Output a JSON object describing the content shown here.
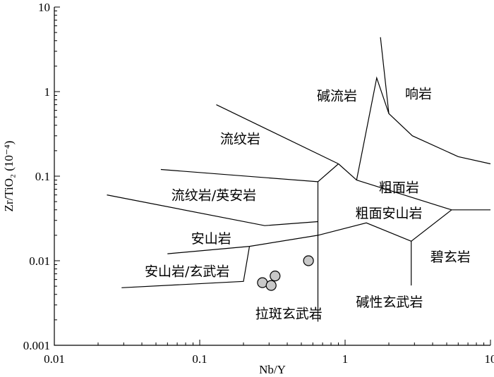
{
  "chart_data": {
    "type": "scatter",
    "x_scale": "log",
    "y_scale": "log",
    "xlim": [
      0.01,
      10
    ],
    "ylim": [
      0.001,
      10
    ],
    "xlabel": "Nb/Y",
    "ylabel": "Zr/TiO₂ (10⁻⁴)",
    "x_ticks": [
      {
        "value": 0.01,
        "label": "0.01"
      },
      {
        "value": 0.1,
        "label": "0.1"
      },
      {
        "value": 1,
        "label": "1"
      },
      {
        "value": 10,
        "label": "10"
      }
    ],
    "y_ticks": [
      {
        "value": 0.001,
        "label": "0.001"
      },
      {
        "value": 0.01,
        "label": "0.01"
      },
      {
        "value": 0.1,
        "label": "0.1"
      },
      {
        "value": 1,
        "label": "1"
      },
      {
        "value": 10,
        "label": "10"
      }
    ],
    "points": [
      {
        "x": 0.27,
        "y": 0.0055
      },
      {
        "x": 0.31,
        "y": 0.0051
      },
      {
        "x": 0.33,
        "y": 0.0066
      },
      {
        "x": 0.56,
        "y": 0.01
      }
    ],
    "field_labels": [
      {
        "text": "碱流岩",
        "x": 0.88,
        "y": 0.9
      },
      {
        "text": "响岩",
        "x": 3.2,
        "y": 0.95
      },
      {
        "text": "流纹岩",
        "x": 0.19,
        "y": 0.28
      },
      {
        "text": "粗面岩",
        "x": 2.35,
        "y": 0.074
      },
      {
        "text": "流纹岩/英安岩",
        "x": 0.125,
        "y": 0.06
      },
      {
        "text": "粗面安山岩",
        "x": 2.0,
        "y": 0.037
      },
      {
        "text": "安山岩",
        "x": 0.12,
        "y": 0.0185
      },
      {
        "text": "碧玄岩",
        "x": 5.3,
        "y": 0.0112
      },
      {
        "text": "安山岩/玄武岩",
        "x": 0.082,
        "y": 0.0076
      },
      {
        "text": "碱性玄武岩",
        "x": 2.02,
        "y": 0.0033
      },
      {
        "text": "拉斑玄武岩",
        "x": 0.41,
        "y": 0.0024
      }
    ],
    "boundaries": [
      [
        [
          1.75,
          4.4
        ],
        [
          2.0,
          0.55
        ],
        [
          2.9,
          0.3
        ],
        [
          6.0,
          0.17
        ],
        [
          10.0,
          0.14
        ]
      ],
      [
        [
          0.13,
          0.7
        ],
        [
          0.9,
          0.14
        ]
      ],
      [
        [
          1.2,
          0.09
        ],
        [
          1.65,
          1.45
        ],
        [
          2.0,
          0.55
        ]
      ],
      [
        [
          0.9,
          0.14
        ],
        [
          0.65,
          0.086
        ],
        [
          0.65,
          0.0019
        ]
      ],
      [
        [
          0.9,
          0.14
        ],
        [
          1.2,
          0.09
        ]
      ],
      [
        [
          0.054,
          0.12
        ],
        [
          0.65,
          0.086
        ]
      ],
      [
        [
          0.023,
          0.06
        ],
        [
          0.28,
          0.026
        ],
        [
          0.65,
          0.029
        ]
      ],
      [
        [
          1.2,
          0.09
        ],
        [
          5.4,
          0.04
        ],
        [
          10.0,
          0.04
        ]
      ],
      [
        [
          0.65,
          0.02
        ],
        [
          1.4,
          0.028
        ],
        [
          2.85,
          0.017
        ],
        [
          5.4,
          0.04
        ]
      ],
      [
        [
          2.85,
          0.017
        ],
        [
          2.85,
          0.0051
        ]
      ],
      [
        [
          0.06,
          0.0121
        ],
        [
          0.22,
          0.0148
        ],
        [
          0.65,
          0.02
        ]
      ],
      [
        [
          0.029,
          0.0048
        ],
        [
          0.2,
          0.0057
        ],
        [
          0.22,
          0.0148
        ]
      ]
    ]
  }
}
